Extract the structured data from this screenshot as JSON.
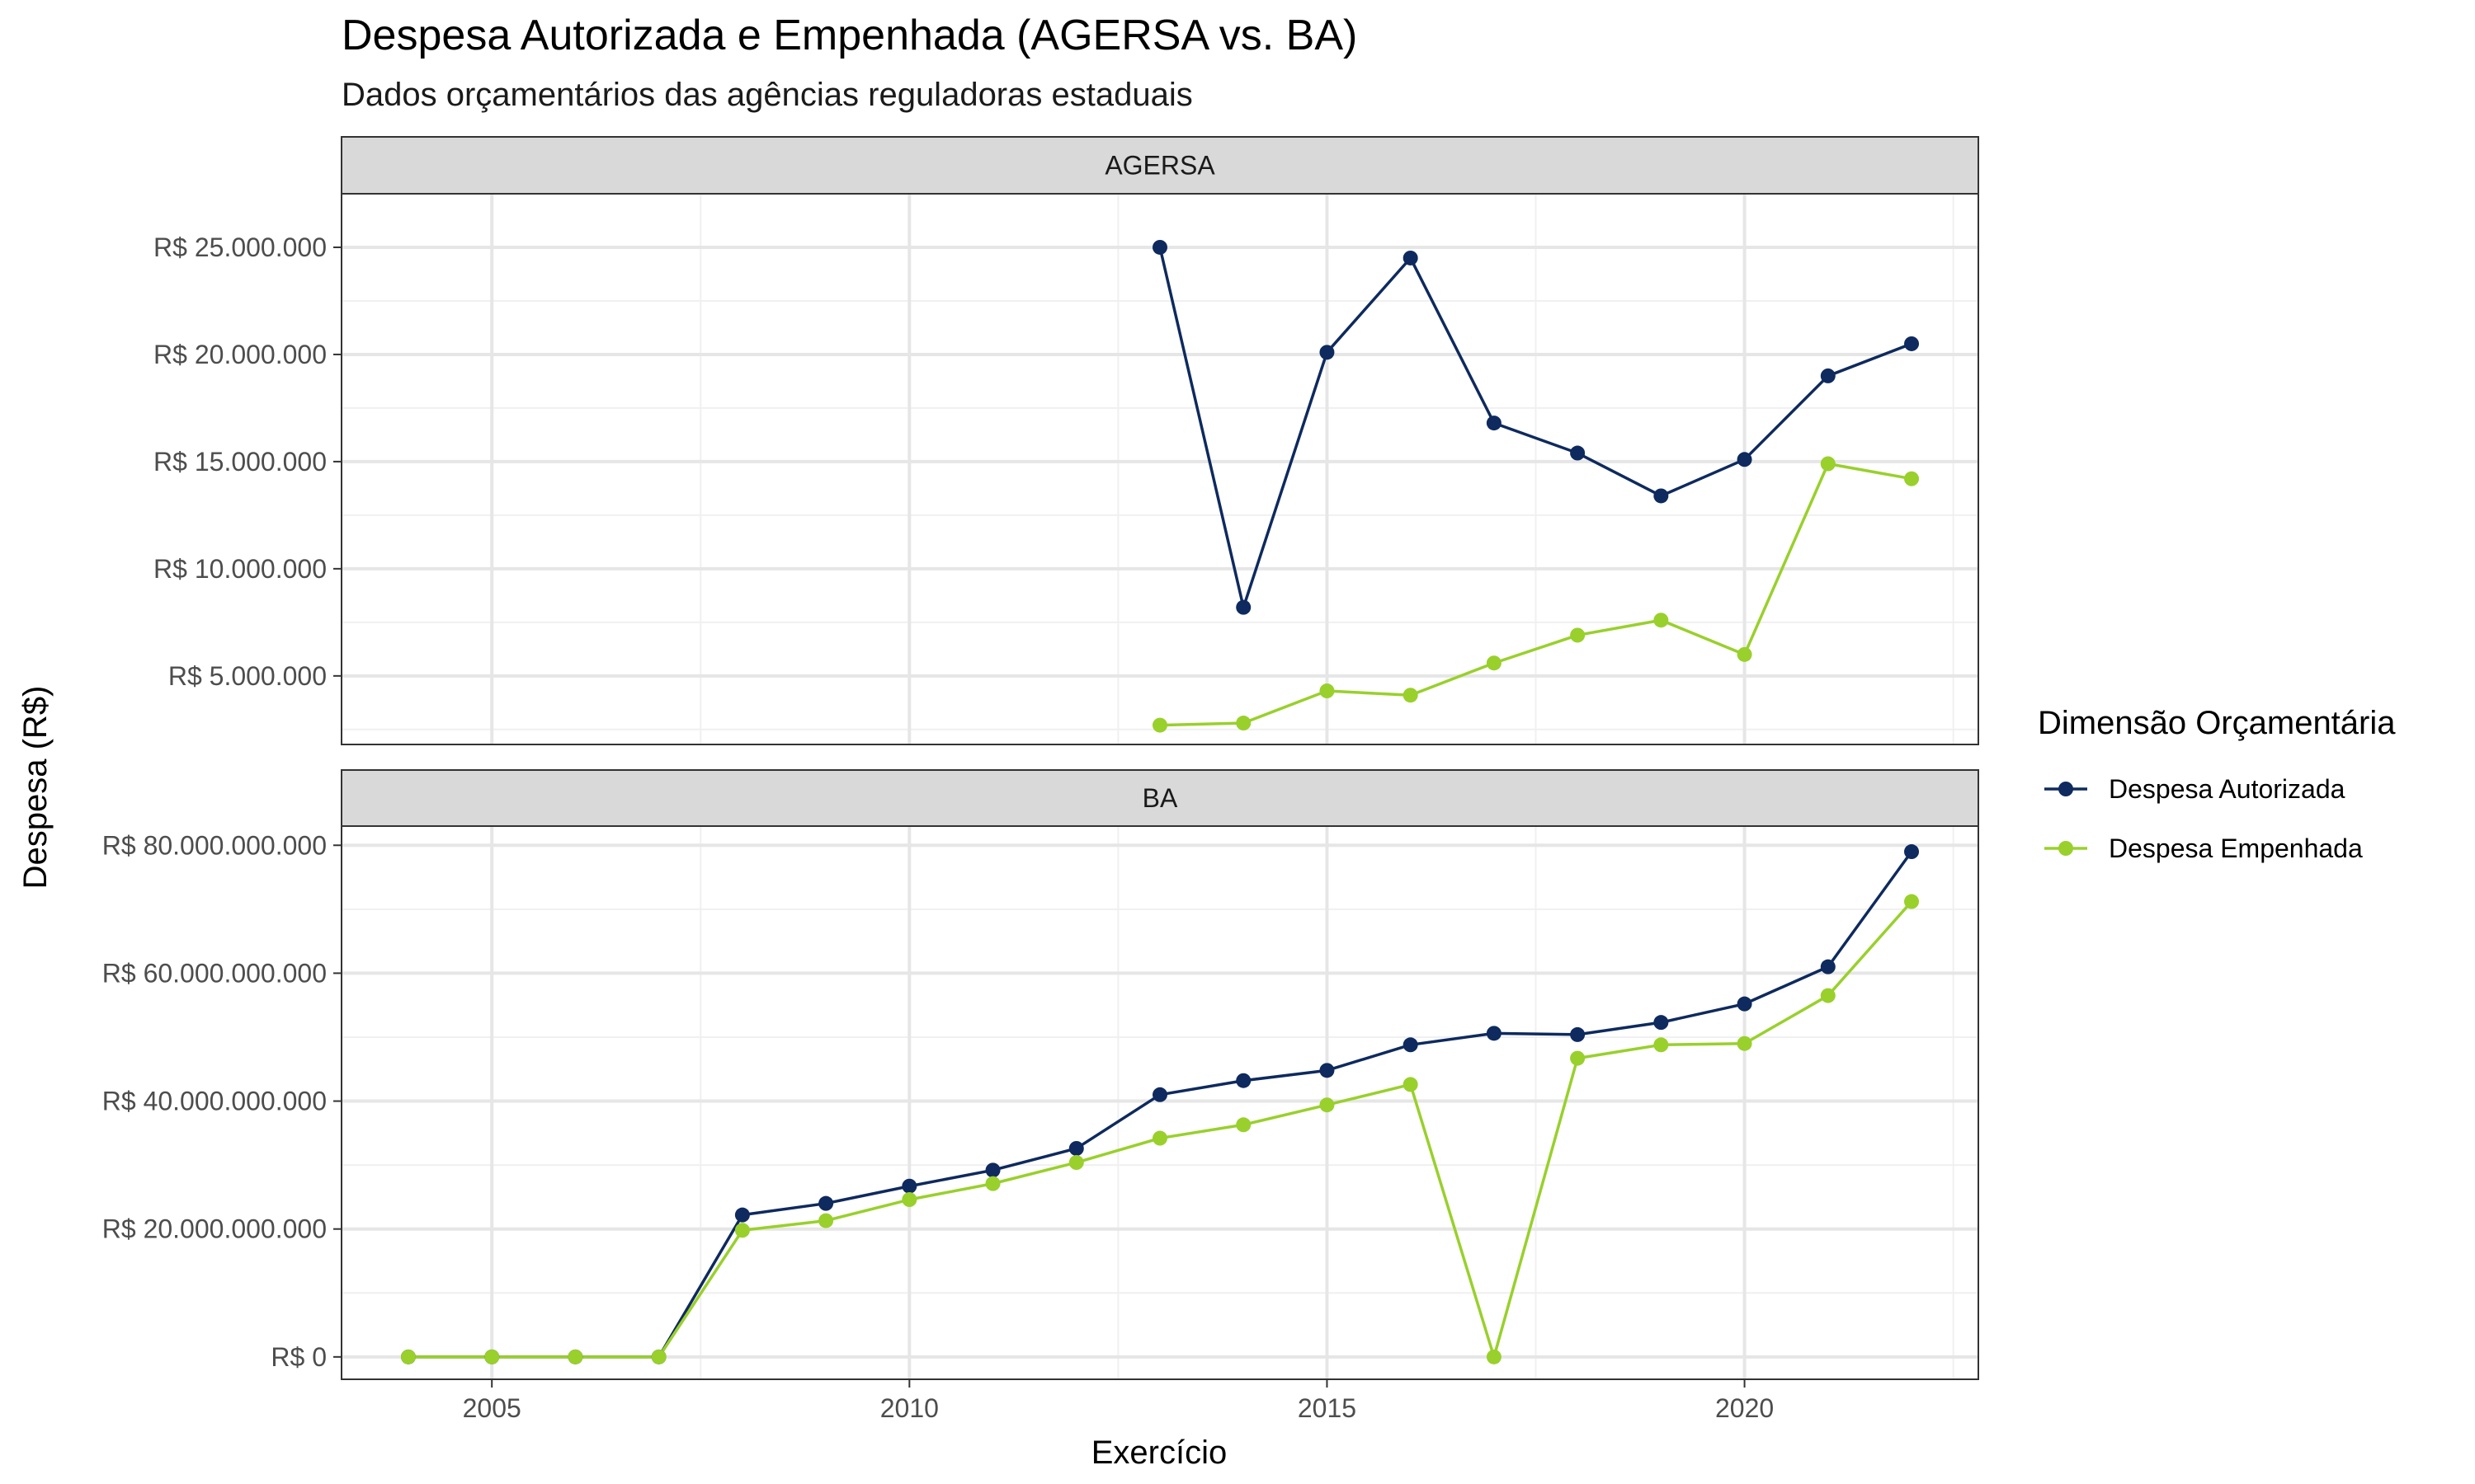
{
  "chart_data": {
    "type": "line",
    "title": "Despesa Autorizada e Empenhada (AGERSA vs. BA)",
    "subtitle": "Dados orçamentários das agências reguladoras estaduais",
    "xlabel": "Exercício",
    "ylabel": "Despesa (R$)",
    "x_ticks": [
      2005,
      2010,
      2015,
      2020
    ],
    "xlim": [
      2003.2,
      2022.8
    ],
    "grid": true,
    "legend": {
      "title": "Dimensão Orçamentária",
      "placement": "right",
      "entries": [
        "Despesa Autorizada",
        "Despesa Empenhada"
      ]
    },
    "colors": {
      "Despesa Autorizada": "#0e2a5e",
      "Despesa Empenhada": "#99d02c"
    },
    "panels": [
      {
        "strip": "AGERSA",
        "ylim": [
          1800000,
          27500000
        ],
        "y_ticks": [
          5000000,
          10000000,
          15000000,
          20000000,
          25000000
        ],
        "y_tick_labels": [
          "R$ 5.000.000",
          "R$ 10.000.000",
          "R$ 15.000.000",
          "R$ 20.000.000",
          "R$ 25.000.000"
        ],
        "x": [
          2013,
          2014,
          2015,
          2016,
          2017,
          2018,
          2019,
          2020,
          2021,
          2022
        ],
        "series": [
          {
            "name": "Despesa Autorizada",
            "values": [
              25000000,
              8200000,
              20100000,
              24500000,
              16800000,
              15400000,
              13400000,
              15100000,
              19000000,
              20500000
            ]
          },
          {
            "name": "Despesa Empenhada",
            "values": [
              2700000,
              2800000,
              4300000,
              4100000,
              5600000,
              6900000,
              7600000,
              6000000,
              14900000,
              14200000
            ]
          }
        ]
      },
      {
        "strip": "BA",
        "ylim": [
          -3500000000,
          83000000000
        ],
        "y_ticks": [
          0,
          20000000000,
          40000000000,
          60000000000,
          80000000000
        ],
        "y_tick_labels": [
          "R$ 0",
          "R$ 20.000.000.000",
          "R$ 40.000.000.000",
          "R$ 60.000.000.000",
          "R$ 80.000.000.000"
        ],
        "x": [
          2004,
          2005,
          2006,
          2007,
          2008,
          2009,
          2010,
          2011,
          2012,
          2013,
          2014,
          2015,
          2016,
          2017,
          2018,
          2019,
          2020,
          2021,
          2022
        ],
        "series": [
          {
            "name": "Despesa Autorizada",
            "values": [
              0,
              0,
              0,
              0,
              22200000000,
              24000000000,
              26700000000,
              29200000000,
              32600000000,
              41000000000,
              43200000000,
              44800000000,
              48800000000,
              50600000000,
              50400000000,
              52300000000,
              55200000000,
              61000000000,
              79000000000
            ]
          },
          {
            "name": "Despesa Empenhada",
            "values": [
              0,
              0,
              0,
              0,
              19800000000,
              21300000000,
              24600000000,
              27100000000,
              30400000000,
              34200000000,
              36300000000,
              39400000000,
              42600000000,
              0,
              46700000000,
              48800000000,
              49000000000,
              56500000000,
              71200000000
            ]
          }
        ]
      }
    ]
  }
}
